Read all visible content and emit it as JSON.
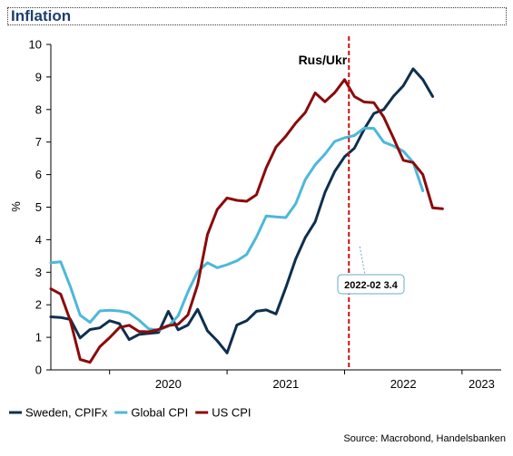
{
  "header": {
    "title": "Inflation"
  },
  "footer": {
    "source": "Source: Macrobond, Handelsbanken"
  },
  "colors": {
    "sweden": "#0e2f4f",
    "global": "#4db8d9",
    "us": "#8b0a0a",
    "event_line": "#cc1111"
  },
  "chart_data": {
    "type": "line",
    "ylabel": "%",
    "xlabel": "",
    "ylim": [
      0,
      10
    ],
    "yticks": [
      0,
      1,
      2,
      3,
      4,
      5,
      6,
      7,
      8,
      9,
      10
    ],
    "x_tick_labels": [
      "2020",
      "2021",
      "2022",
      "2023"
    ],
    "x_start": "2019-07",
    "x_end": "2023-05",
    "grid": false,
    "legend_position": "bottom-left",
    "event": {
      "label": "Rus/Ukr",
      "date": "2022-02"
    },
    "annotation": {
      "text": "2022-02 3.4",
      "date": "2022-02",
      "value": 3.4
    },
    "series": [
      {
        "name": "Sweden, CPIFx",
        "color": "#0e2f4f",
        "start": "2019-07",
        "values": [
          1.63,
          1.61,
          1.55,
          0.98,
          1.24,
          1.29,
          1.51,
          1.42,
          0.93,
          1.09,
          1.12,
          1.15,
          1.8,
          1.23,
          1.38,
          1.86,
          1.2,
          0.89,
          0.52,
          1.38,
          1.51,
          1.8,
          1.84,
          1.72,
          2.53,
          3.4,
          4.07,
          4.55,
          5.45,
          6.1,
          6.55,
          6.81,
          7.39,
          7.88,
          8.0,
          8.41,
          8.73,
          9.25,
          8.92,
          8.4
        ]
      },
      {
        "name": "Global CPI",
        "color": "#4db8d9",
        "start": "2019-07",
        "values": [
          3.29,
          3.32,
          2.55,
          1.68,
          1.46,
          1.81,
          1.83,
          1.81,
          1.75,
          1.53,
          1.26,
          1.22,
          1.34,
          1.66,
          2.4,
          3.02,
          3.29,
          3.14,
          3.23,
          3.35,
          3.55,
          4.08,
          4.73,
          4.7,
          4.68,
          5.1,
          5.85,
          6.3,
          6.63,
          7.02,
          7.13,
          7.2,
          7.43,
          7.42,
          7.0,
          6.88,
          6.72,
          6.38,
          5.5
        ]
      },
      {
        "name": "US CPI",
        "color": "#8b0a0a",
        "start": "2019-07",
        "values": [
          2.49,
          2.33,
          1.5,
          0.32,
          0.23,
          0.71,
          0.99,
          1.3,
          1.37,
          1.18,
          1.17,
          1.24,
          1.36,
          1.4,
          1.69,
          2.62,
          4.16,
          4.93,
          5.28,
          5.21,
          5.18,
          5.38,
          6.21,
          6.85,
          7.18,
          7.58,
          7.91,
          8.51,
          8.24,
          8.52,
          8.92,
          8.4,
          8.23,
          8.21,
          7.77,
          7.12,
          6.44,
          6.37,
          6.0,
          4.98,
          4.95
        ]
      }
    ]
  }
}
